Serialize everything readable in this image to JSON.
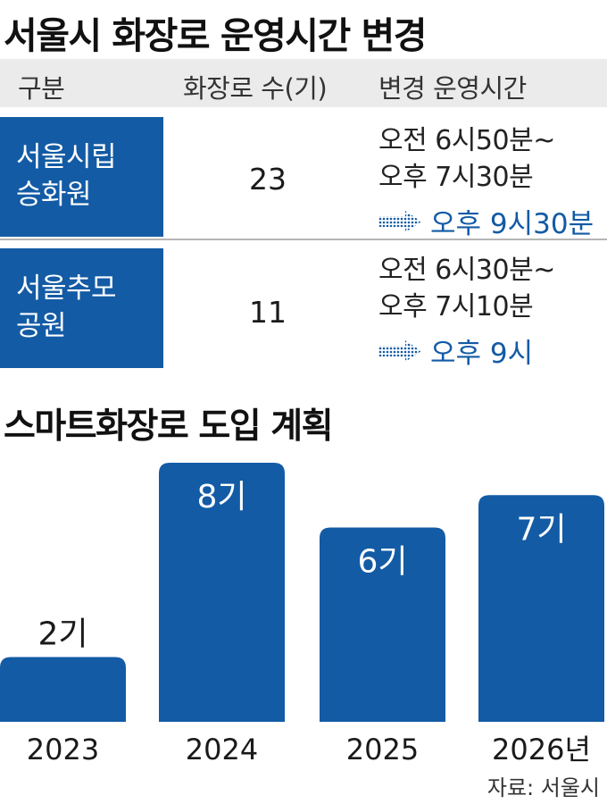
{
  "table": {
    "title": "서울시 화장로 운영시간 변경",
    "headers": [
      "구분",
      "화장로 수(기)",
      "변경 운영시간"
    ],
    "rows": [
      {
        "name_line1": "서울시립",
        "name_line2": "승화원",
        "count": "23",
        "time_line1": "오전 6시50분~",
        "time_line2": "오후 7시30분",
        "new_time": "오후 9시30분"
      },
      {
        "name_line1": "서울추모",
        "name_line2": "공원",
        "count": "11",
        "time_line1": "오전 6시30분~",
        "time_line2": "오후 7시10분",
        "new_time": "오후 9시"
      }
    ]
  },
  "colors": {
    "accent": "#135ba5",
    "header_bg": "#ebebeb",
    "divider": "#b5b5b5"
  },
  "chart_data": {
    "type": "bar",
    "title": "스마트화장로 도입 계획",
    "categories": [
      "2023",
      "2024",
      "2025",
      "2026년"
    ],
    "values": [
      2,
      8,
      6,
      7
    ],
    "data_labels": [
      "2기",
      "8기",
      "6기",
      "7기"
    ],
    "ylim": [
      0,
      8
    ],
    "grid": false
  },
  "source": "자료: 서울시"
}
